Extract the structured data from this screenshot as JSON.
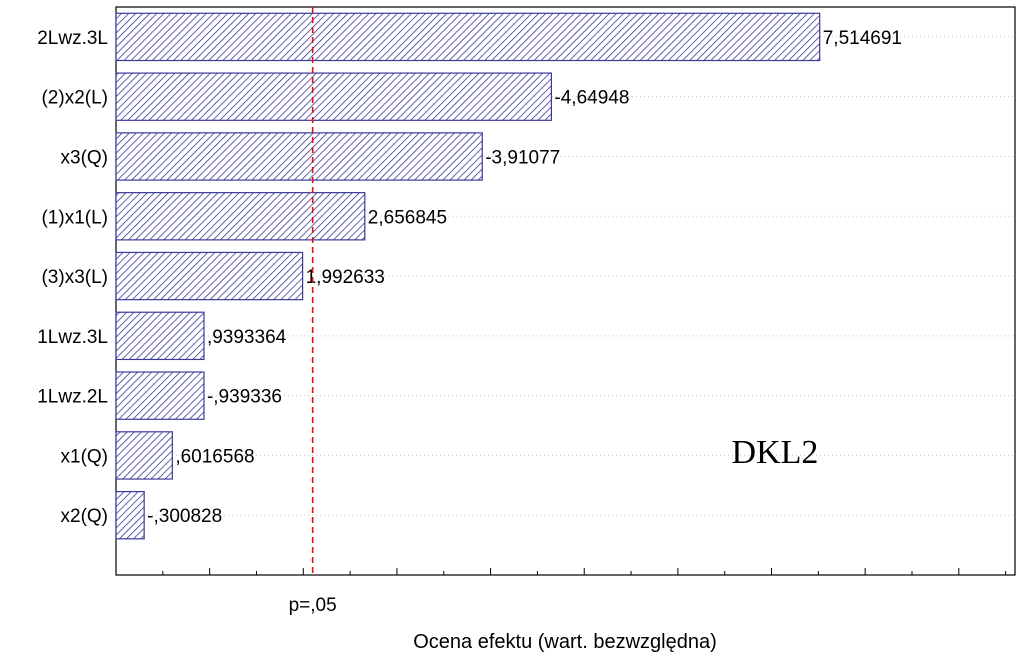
{
  "chart_data": {
    "type": "bar",
    "orientation": "horizontal",
    "categories": [
      "2Lwz.3L",
      "(2)x2(L)",
      "x3(Q)",
      "(1)x1(L)",
      "(3)x3(L)",
      "1Lwz.3L",
      "1Lwz.2L",
      "x1(Q)",
      "x2(Q)"
    ],
    "values": [
      7.514691,
      4.64948,
      3.91077,
      2.656845,
      1.992633,
      0.9393364,
      0.939336,
      0.6016568,
      0.300828
    ],
    "value_labels": [
      "7,514691",
      "-4,64948",
      "-3,91077",
      "2,656845",
      "1,992633",
      ",9393364",
      "-,939336",
      ",6016568",
      "-,300828"
    ],
    "xlabel": "Ocena efektu (wart. bezwzględna)",
    "xlim": [
      0,
      9.6
    ],
    "threshold": {
      "value": 2.1,
      "label": "p=,05",
      "color": "#dd1111"
    },
    "annotation": "DKL2",
    "bar_color": "#3a3a9a",
    "grid": true
  }
}
